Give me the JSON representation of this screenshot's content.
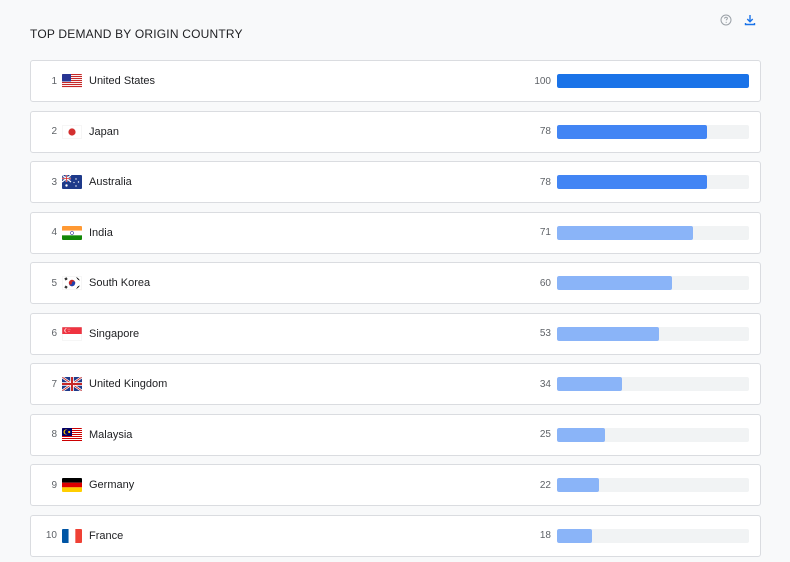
{
  "header": {
    "title": "TOP DEMAND BY ORIGIN COUNTRY",
    "help_icon": "help-circle-icon",
    "download_icon": "download-icon"
  },
  "colors": {
    "primary": "#1a73e8",
    "mid": "#4285f4",
    "light": "#8ab4f8",
    "track": "#f1f3f4"
  },
  "countries": [
    {
      "rank": "1",
      "name": "United States",
      "value": "100",
      "score": 100,
      "flag": "us"
    },
    {
      "rank": "2",
      "name": "Japan",
      "value": "78",
      "score": 78,
      "flag": "jp"
    },
    {
      "rank": "3",
      "name": "Australia",
      "value": "78",
      "score": 78,
      "flag": "au"
    },
    {
      "rank": "4",
      "name": "India",
      "value": "71",
      "score": 71,
      "flag": "in"
    },
    {
      "rank": "5",
      "name": "South Korea",
      "value": "60",
      "score": 60,
      "flag": "kr"
    },
    {
      "rank": "6",
      "name": "Singapore",
      "value": "53",
      "score": 53,
      "flag": "sg"
    },
    {
      "rank": "7",
      "name": "United Kingdom",
      "value": "34",
      "score": 34,
      "flag": "gb"
    },
    {
      "rank": "8",
      "name": "Malaysia",
      "value": "25",
      "score": 25,
      "flag": "my"
    },
    {
      "rank": "9",
      "name": "Germany",
      "value": "22",
      "score": 22,
      "flag": "de"
    },
    {
      "rank": "10",
      "name": "France",
      "value": "18",
      "score": 18,
      "flag": "fr"
    }
  ]
}
